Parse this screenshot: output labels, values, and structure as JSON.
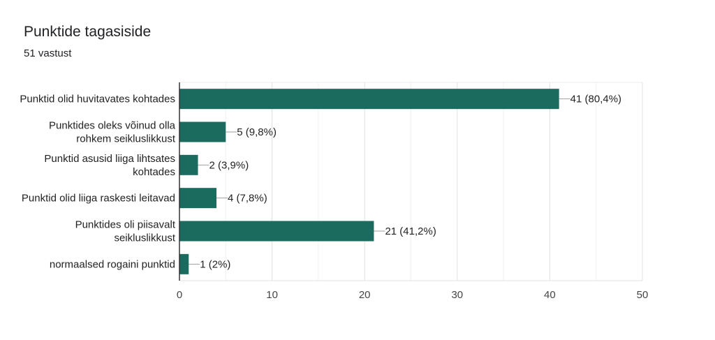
{
  "header": {
    "title": "Punktide tagasiside",
    "subtitle": "51 vastust"
  },
  "chart_data": {
    "type": "bar",
    "orientation": "horizontal",
    "categories": [
      [
        "Punktid olid huvitavates kohtades"
      ],
      [
        "Punktides oleks võinud olla",
        "rohkem seikluslikkust"
      ],
      [
        "Punktid asusid liiga lihtsates",
        "kohtades"
      ],
      [
        "Punktid olid liiga raskesti leitavad"
      ],
      [
        "Punktides oli piisavalt",
        "seikluslikkust"
      ],
      [
        "normaalsed rogaini punktid"
      ]
    ],
    "values": [
      41,
      5,
      2,
      4,
      21,
      1
    ],
    "value_labels": [
      "41 (80,4%)",
      "5 (9,8%)",
      "2 (3,9%)",
      "4 (7,8%)",
      "21 (41,2%)",
      "1 (2%)"
    ],
    "xlim": [
      0,
      50
    ],
    "xticks": [
      0,
      10,
      20,
      30,
      40,
      50
    ],
    "grid": true,
    "bar_color": "#1b6b5f"
  }
}
